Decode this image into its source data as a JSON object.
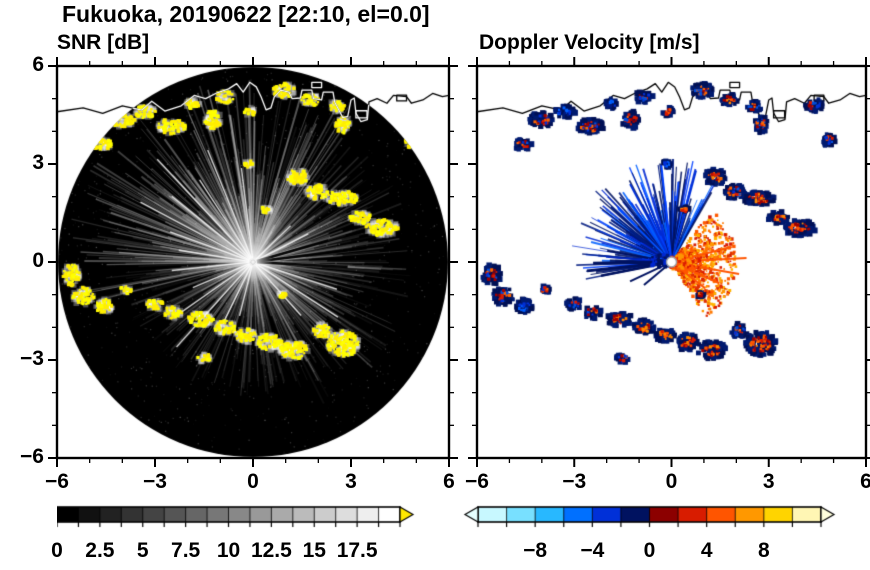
{
  "chart_data": {
    "type": "heatmap",
    "title": "Fukuoka, 20190622 [22:10, el=0.0]",
    "station": "Fukuoka",
    "date": "20190622",
    "time": "22:10",
    "elevation_deg": 0.0,
    "axes": {
      "xlim": [
        -6,
        6
      ],
      "ylim": [
        -6,
        6
      ],
      "xtick_values": [
        -6,
        -3,
        0,
        3,
        6
      ],
      "xtick_labels": [
        "−6",
        "−3",
        "0",
        "3",
        "6"
      ],
      "ytick_values": [
        -6,
        -3,
        0,
        3,
        6
      ],
      "ytick_labels": [
        "−6",
        "−3",
        "0",
        "3",
        "6"
      ],
      "minor_tick_step": 1,
      "range_km": 6
    },
    "panels": [
      {
        "id": "snr",
        "title": "SNR [dB]",
        "colorbar": {
          "min": 0,
          "max": 20,
          "segment_step": 1.25,
          "tick_label_values": [
            0,
            2.5,
            5,
            7.5,
            10,
            12.5,
            15,
            17.5
          ],
          "tick_labels": [
            "0",
            "2.5",
            "5",
            "7.5",
            "10",
            "12.5",
            "15",
            "17.5"
          ],
          "style": "grayscale",
          "start_color": "#000000",
          "end_color": "#ffffff",
          "over_arrow_color": "#ffe800"
        }
      },
      {
        "id": "velocity",
        "title": "Doppler Velocity [m/s]",
        "colorbar": {
          "min": -12,
          "max": 12,
          "segment_step": 2,
          "tick_label_values": [
            -8,
            -4,
            0,
            4,
            8
          ],
          "tick_labels": [
            "−8",
            "−4",
            "0",
            "4",
            "8"
          ],
          "style": "discrete",
          "colors": [
            "#c8f8ff",
            "#78e0ff",
            "#28b8ff",
            "#0070ff",
            "#0030d8",
            "#001260",
            "#8c0000",
            "#d81c00",
            "#ff5500",
            "#ff9800",
            "#ffd400",
            "#fff6b4"
          ],
          "under_arrow_color": "#e6ffff",
          "over_arrow_color": "#ffffdc"
        }
      }
    ],
    "radar": {
      "coastline_km": [
        [
          -6,
          4.6
        ],
        [
          -5.2,
          4.72
        ],
        [
          -4.6,
          4.55
        ],
        [
          -4.0,
          4.78
        ],
        [
          -3.4,
          4.65
        ],
        [
          -3.1,
          4.92
        ],
        [
          -2.7,
          4.62
        ],
        [
          -2.2,
          4.78
        ],
        [
          -1.8,
          5.1
        ],
        [
          -1.45,
          5.0
        ],
        [
          -1.1,
          5.18
        ],
        [
          -0.75,
          5.3
        ],
        [
          -0.5,
          5.46
        ],
        [
          -0.3,
          5.2
        ],
        [
          -0.1,
          5.5
        ],
        [
          0.1,
          5.36
        ],
        [
          0.25,
          5.05
        ],
        [
          0.4,
          4.66
        ],
        [
          0.55,
          4.72
        ],
        [
          0.65,
          5.05
        ],
        [
          0.85,
          5.26
        ],
        [
          1.1,
          5.2
        ],
        [
          1.2,
          5.0
        ],
        [
          1.45,
          5.02
        ],
        [
          1.5,
          5.26
        ],
        [
          1.8,
          5.26
        ],
        [
          1.85,
          5.0
        ],
        [
          2.1,
          4.96
        ],
        [
          2.15,
          5.2
        ],
        [
          2.45,
          5.2
        ],
        [
          2.5,
          4.9
        ],
        [
          2.75,
          4.42
        ],
        [
          2.9,
          4.46
        ],
        [
          3.0,
          4.96
        ],
        [
          3.1,
          5.02
        ],
        [
          3.15,
          4.56
        ],
        [
          3.3,
          4.3
        ],
        [
          3.5,
          4.36
        ],
        [
          3.55,
          4.9
        ],
        [
          3.8,
          5.0
        ],
        [
          4.1,
          4.86
        ],
        [
          4.3,
          5.1
        ],
        [
          4.7,
          5.06
        ],
        [
          4.85,
          4.86
        ],
        [
          5.2,
          4.96
        ],
        [
          5.5,
          5.16
        ],
        [
          5.8,
          5.06
        ],
        [
          6,
          5.1
        ]
      ],
      "islands_km": [
        {
          "x": 1.95,
          "y": 5.42,
          "w": 0.3,
          "h": 0.16
        },
        {
          "x": 3.32,
          "y": 4.52,
          "w": 0.34,
          "h": 0.22
        },
        {
          "x": 4.55,
          "y": 5.02,
          "w": 0.3,
          "h": 0.18
        }
      ],
      "echoes": [
        {
          "x": -4.6,
          "y": 3.6,
          "w": 0.5,
          "h": 0.35,
          "fill": "mix"
        },
        {
          "x": -4.0,
          "y": 4.35,
          "w": 0.7,
          "h": 0.4,
          "fill": "mix"
        },
        {
          "x": -3.3,
          "y": 4.6,
          "w": 0.6,
          "h": 0.35,
          "fill": "blue"
        },
        {
          "x": -2.5,
          "y": 4.15,
          "w": 0.8,
          "h": 0.4,
          "fill": "mix"
        },
        {
          "x": -1.85,
          "y": 4.85,
          "w": 0.4,
          "h": 0.3,
          "fill": "blue"
        },
        {
          "x": -1.25,
          "y": 4.35,
          "w": 0.5,
          "h": 0.5,
          "fill": "mix"
        },
        {
          "x": -0.85,
          "y": 5.05,
          "w": 0.5,
          "h": 0.35,
          "fill": "mix"
        },
        {
          "x": -0.1,
          "y": 4.6,
          "w": 0.3,
          "h": 0.25,
          "fill": "red"
        },
        {
          "x": 0.95,
          "y": 5.25,
          "w": 0.6,
          "h": 0.4,
          "fill": "mix"
        },
        {
          "x": 1.75,
          "y": 4.95,
          "w": 0.5,
          "h": 0.35,
          "fill": "red"
        },
        {
          "x": 2.55,
          "y": 4.75,
          "w": 0.45,
          "h": 0.3,
          "fill": "mix"
        },
        {
          "x": 2.75,
          "y": 4.2,
          "w": 0.4,
          "h": 0.5,
          "fill": "mix"
        },
        {
          "x": 4.4,
          "y": 4.8,
          "w": 0.5,
          "h": 0.4,
          "fill": "mix"
        },
        {
          "x": 4.85,
          "y": 3.75,
          "w": 0.35,
          "h": 0.45,
          "fill": "mix"
        },
        {
          "x": 1.35,
          "y": 2.6,
          "w": 0.6,
          "h": 0.45,
          "fill": "red"
        },
        {
          "x": 1.95,
          "y": 2.15,
          "w": 0.6,
          "h": 0.4,
          "fill": "mix"
        },
        {
          "x": 2.7,
          "y": 1.95,
          "w": 0.9,
          "h": 0.4,
          "fill": "red"
        },
        {
          "x": 3.3,
          "y": 1.35,
          "w": 0.6,
          "h": 0.35,
          "fill": "red"
        },
        {
          "x": 3.95,
          "y": 1.05,
          "w": 0.9,
          "h": 0.45,
          "fill": "red"
        },
        {
          "x": -5.55,
          "y": -0.4,
          "w": 0.5,
          "h": 0.6,
          "fill": "mix"
        },
        {
          "x": -5.2,
          "y": -1.05,
          "w": 0.6,
          "h": 0.5,
          "fill": "mix"
        },
        {
          "x": -4.55,
          "y": -1.35,
          "w": 0.5,
          "h": 0.4,
          "fill": "blue"
        },
        {
          "x": -3.9,
          "y": -0.85,
          "w": 0.3,
          "h": 0.25,
          "fill": "mix"
        },
        {
          "x": -3.0,
          "y": -1.3,
          "w": 0.45,
          "h": 0.3,
          "fill": "mix"
        },
        {
          "x": -2.45,
          "y": -1.55,
          "w": 0.5,
          "h": 0.35,
          "fill": "mix"
        },
        {
          "x": -1.6,
          "y": -1.75,
          "w": 0.7,
          "h": 0.4,
          "fill": "red"
        },
        {
          "x": -0.85,
          "y": -2.0,
          "w": 0.6,
          "h": 0.4,
          "fill": "red"
        },
        {
          "x": -0.2,
          "y": -2.25,
          "w": 0.6,
          "h": 0.4,
          "fill": "red"
        },
        {
          "x": 0.5,
          "y": -2.45,
          "w": 0.7,
          "h": 0.45,
          "fill": "red"
        },
        {
          "x": 1.25,
          "y": -2.7,
          "w": 0.8,
          "h": 0.5,
          "fill": "red"
        },
        {
          "x": 2.1,
          "y": -2.1,
          "w": 0.5,
          "h": 0.4,
          "fill": "mix"
        },
        {
          "x": 2.75,
          "y": -2.5,
          "w": 0.9,
          "h": 0.7,
          "fill": "red"
        },
        {
          "x": -1.5,
          "y": -2.95,
          "w": 0.4,
          "h": 0.25,
          "fill": "mix"
        },
        {
          "x": 0.9,
          "y": -1.0,
          "w": 0.2,
          "h": 0.15,
          "fill": "red"
        },
        {
          "x": 0.4,
          "y": 1.6,
          "w": 0.25,
          "h": 0.2,
          "fill": "red"
        },
        {
          "x": -0.15,
          "y": 3.0,
          "w": 0.25,
          "h": 0.2,
          "fill": "blue"
        }
      ],
      "snr_render": {
        "haze_count": 1700,
        "haze_sectors": [
          {
            "a0": 55,
            "a1": 195,
            "boost": 1.6
          },
          {
            "a0": 295,
            "a1": 55,
            "boost": 1.1
          },
          {
            "a0": 195,
            "a1": 295,
            "boost": 0.8
          }
        ],
        "bright_rays": [
          {
            "angle": 97,
            "len": 2.9
          },
          {
            "angle": 112,
            "len": 3.7
          },
          {
            "angle": 123,
            "len": 3.0
          },
          {
            "angle": 133,
            "len": 4.3
          },
          {
            "angle": 141,
            "len": 3.2
          },
          {
            "angle": 152,
            "len": 3.9
          },
          {
            "angle": 160,
            "len": 2.7
          },
          {
            "angle": 171,
            "len": 2.3
          },
          {
            "angle": 186,
            "len": 2.5
          },
          {
            "angle": 203,
            "len": 2.0
          },
          {
            "angle": 215,
            "len": 2.9
          },
          {
            "angle": 228,
            "len": 3.5
          },
          {
            "angle": 244,
            "len": 2.1
          },
          {
            "angle": 256,
            "len": 1.7
          },
          {
            "angle": 342,
            "len": 2.7
          },
          {
            "angle": 327,
            "len": 3.1
          },
          {
            "angle": 312,
            "len": 2.2
          },
          {
            "angle": 27,
            "len": 1.9
          },
          {
            "angle": 44,
            "len": 1.6
          }
        ],
        "dark_rays": [
          {
            "angle": 7,
            "len": 3.5
          },
          {
            "angle": 357,
            "len": 2.9
          },
          {
            "angle": 16,
            "len": 2.4
          }
        ]
      },
      "velocity_render": {
        "negative_fan": {
          "a0": 60,
          "a1": 192,
          "count": 340,
          "max_len_km": 3.0,
          "colors": [
            "#0028d2",
            "#0040ff",
            "#001a80",
            "#0060ff",
            "#001260"
          ]
        },
        "long_rays": [
          {
            "angle": 181,
            "len": 2.4,
            "w": 3
          },
          {
            "angle": 186,
            "len": 2.6,
            "w": 3
          },
          {
            "angle": 191,
            "len": 2.2,
            "w": 2.5
          },
          {
            "angle": 170,
            "len": 2.0,
            "w": 2
          },
          {
            "angle": 205,
            "len": 1.4,
            "w": 2
          },
          {
            "angle": 220,
            "len": 1.1,
            "w": 2
          },
          {
            "angle": 75,
            "len": 2.9,
            "w": 2,
            "color": "#0030d8"
          },
          {
            "angle": 96,
            "len": 3.0,
            "w": 2,
            "color": "#0040ff"
          },
          {
            "angle": 118,
            "len": 2.7,
            "w": 2,
            "color": "#0030d8"
          },
          {
            "angle": 135,
            "len": 2.3,
            "w": 1.8,
            "color": "#0050ff"
          }
        ],
        "positive_fan": {
          "a0": -58,
          "a1": 52,
          "count": 1000,
          "max_len_km": 1.9,
          "colors": [
            "#ff5a00",
            "#e03000",
            "#ff7800",
            "#d81c00",
            "#ff9600",
            "#ffb400"
          ]
        },
        "positive_rays": [
          {
            "angle": -10,
            "len": 2.1
          },
          {
            "angle": 3,
            "len": 2.3
          },
          {
            "angle": 14,
            "len": 1.9
          },
          {
            "angle": -24,
            "len": 1.6
          },
          {
            "angle": -38,
            "len": 1.3
          }
        ]
      }
    }
  }
}
